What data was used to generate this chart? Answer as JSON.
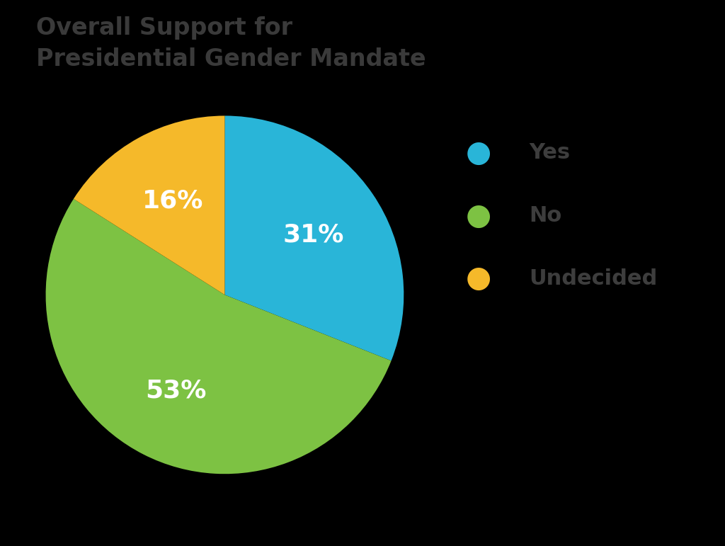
{
  "title": "Overall Support for\nPresidential Gender Mandate",
  "title_fontsize": 24,
  "title_color": "#3a3a3a",
  "background_color": "#000000",
  "slices": [
    31,
    53,
    16
  ],
  "labels": [
    "Yes",
    "No",
    "Undecided"
  ],
  "colors": [
    "#29b5d8",
    "#7dc243",
    "#f5b92a"
  ],
  "pct_labels": [
    "31%",
    "53%",
    "16%"
  ],
  "pct_color": "#ffffff",
  "pct_fontsize": 26,
  "legend_labels": [
    "Yes",
    "No",
    "Undecided"
  ],
  "legend_fontsize": 22,
  "legend_text_color": "#3d3d3d",
  "legend_circle_fontsize": 30,
  "startangle": 90
}
